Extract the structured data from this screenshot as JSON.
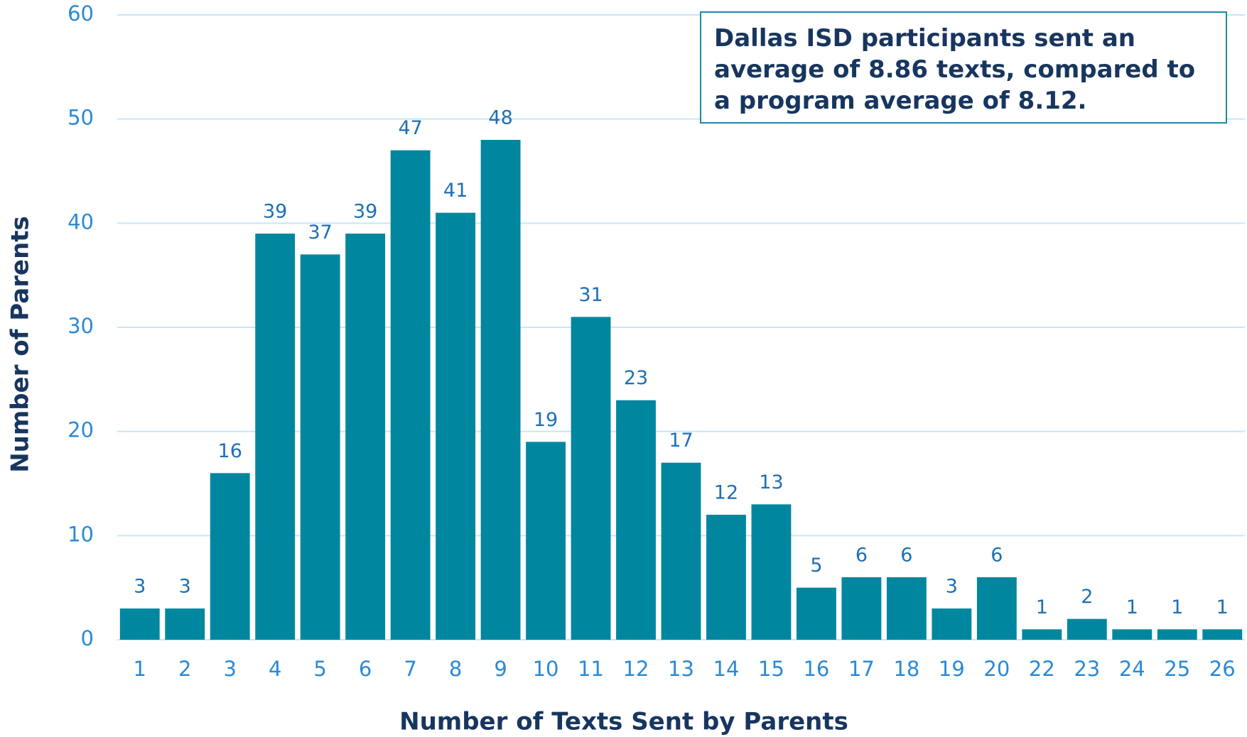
{
  "chart_data": {
    "type": "bar",
    "annotation": "Dallas ISD participants sent an average of 8.86 texts, compared to a program average of 8.12.",
    "xlabel": "Number of Texts Sent by Parents",
    "ylabel": "Number of Parents",
    "categories": [
      "1",
      "2",
      "3",
      "4",
      "5",
      "6",
      "7",
      "8",
      "9",
      "10",
      "11",
      "12",
      "13",
      "14",
      "15",
      "16",
      "17",
      "18",
      "19",
      "20",
      "22",
      "23",
      "24",
      "25",
      "26"
    ],
    "values": [
      3,
      3,
      16,
      39,
      37,
      39,
      47,
      41,
      48,
      19,
      31,
      23,
      17,
      12,
      13,
      5,
      6,
      6,
      3,
      6,
      1,
      2,
      1,
      1,
      1
    ],
    "color": "#00879f",
    "ylim": [
      0,
      60
    ],
    "yticks": [
      0,
      10,
      20,
      30,
      40,
      50,
      60
    ],
    "grid": true
  }
}
